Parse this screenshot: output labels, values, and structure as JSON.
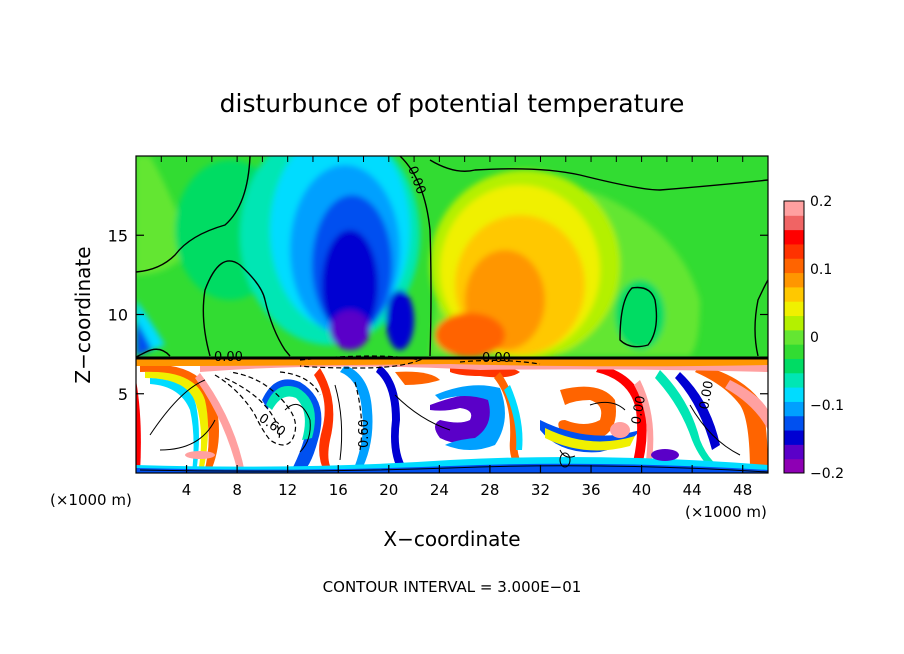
{
  "chart_data": {
    "type": "heatmap",
    "title": "disturbunce of potential temperature",
    "xlabel": "X−coordinate",
    "ylabel": "Z−coordinate",
    "x_unit_left": "(×1000 m)",
    "x_unit_right": "(×1000 m)",
    "xlim": [
      0,
      50
    ],
    "ylim": [
      0,
      20
    ],
    "x_ticks": [
      "4",
      "8",
      "12",
      "16",
      "20",
      "24",
      "28",
      "32",
      "36",
      "40",
      "44",
      "48"
    ],
    "y_ticks": [
      "5",
      "10",
      "15"
    ],
    "colorbar": {
      "range": [
        -0.2,
        0.2
      ],
      "tick_labels": [
        "0.2",
        "0.1",
        "0",
        "−0.1",
        "−0.2"
      ],
      "tick_values": [
        0.2,
        0.1,
        0,
        -0.1,
        -0.2
      ],
      "colors": [
        "#8e00b4",
        "#5a00c8",
        "#0000d2",
        "#0050f0",
        "#00a0ff",
        "#00dcff",
        "#00e6b4",
        "#00dc64",
        "#32dc32",
        "#64e632",
        "#b4f000",
        "#f0f000",
        "#ffc800",
        "#ff9600",
        "#ff6400",
        "#ff3200",
        "#ff0000",
        "#f06464",
        "#ffa0a0"
      ]
    },
    "contour_labels": [
      "0.00",
      "0.00",
      "0.00",
      "0.60",
      "0.60",
      "0.00",
      "0.00"
    ],
    "footnote": "CONTOUR INTERVAL = 3.000E−01",
    "grid": false,
    "legend": "right"
  }
}
